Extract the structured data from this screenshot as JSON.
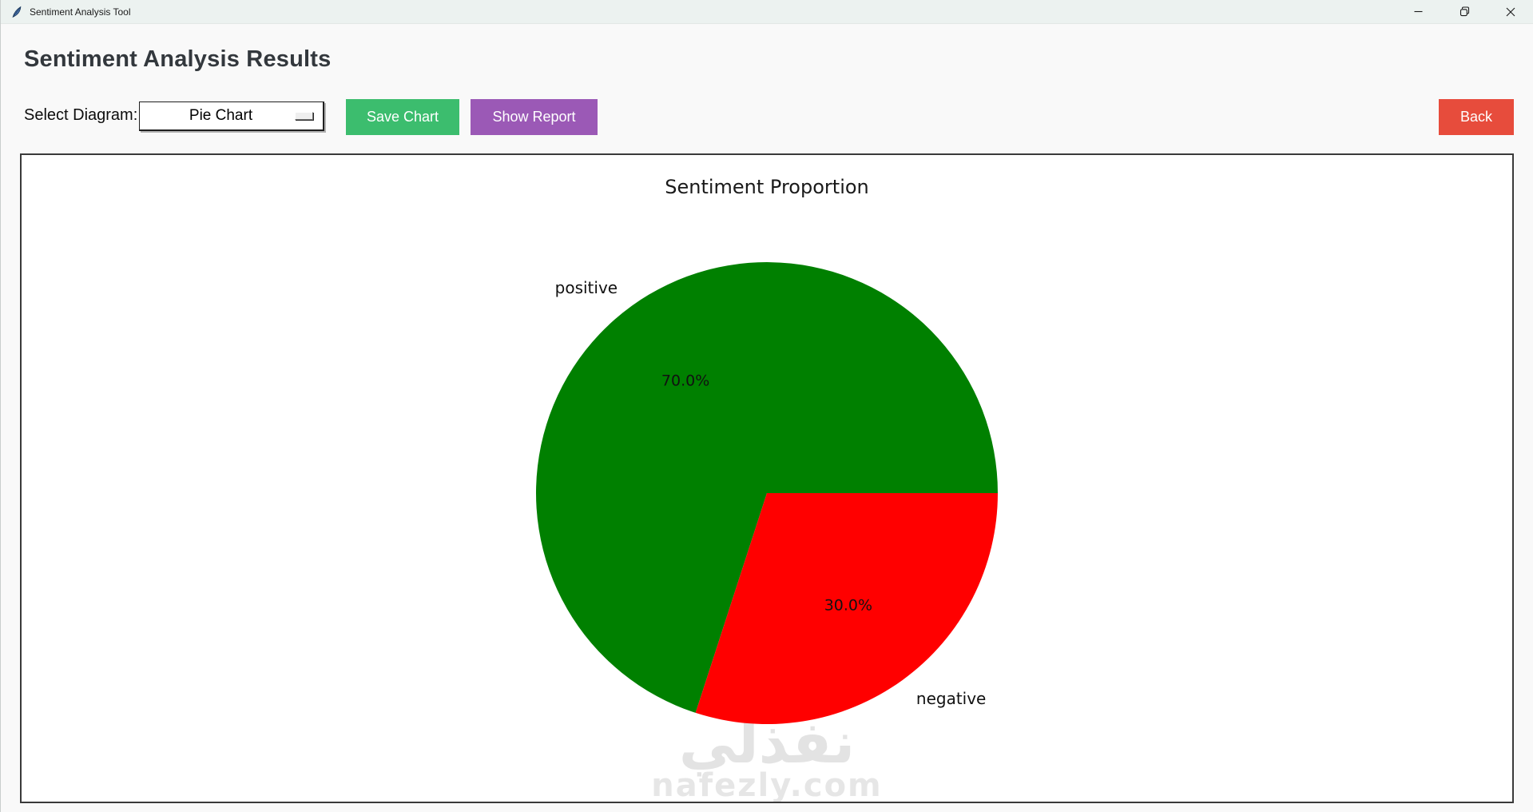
{
  "window": {
    "title": "Sentiment Analysis Tool",
    "icons": {
      "app": "tk-feather-icon",
      "minimize": "minimize-icon",
      "maximize": "maximize-restore-icon",
      "close": "close-icon"
    }
  },
  "page": {
    "heading": "Sentiment Analysis Results",
    "select_diagram_label": "Select Diagram:",
    "diagram_select": {
      "value": "Pie Chart"
    },
    "buttons": {
      "save_chart": "Save Chart",
      "show_report": "Show Report",
      "back": "Back"
    }
  },
  "colors": {
    "save_chart_bg": "#3cbd6e",
    "show_report_bg": "#9b59b6",
    "back_bg": "#e74c3c",
    "positive_slice": "#008000",
    "negative_slice": "#ff0000"
  },
  "chart_data": {
    "type": "pie",
    "title": "Sentiment Proportion",
    "labels": [
      "positive",
      "negative"
    ],
    "values": [
      70.0,
      30.0
    ],
    "autopct_labels": [
      "70.0%",
      "30.0%"
    ],
    "colors": [
      "#008000",
      "#ff0000"
    ],
    "start_angle_deg": 0,
    "direction": "counterclockwise",
    "label_distance": 1.1,
    "pct_distance": 0.6,
    "legend": "none"
  },
  "watermark": {
    "arabic": "نفذلي",
    "domain": "nafezly.com"
  }
}
